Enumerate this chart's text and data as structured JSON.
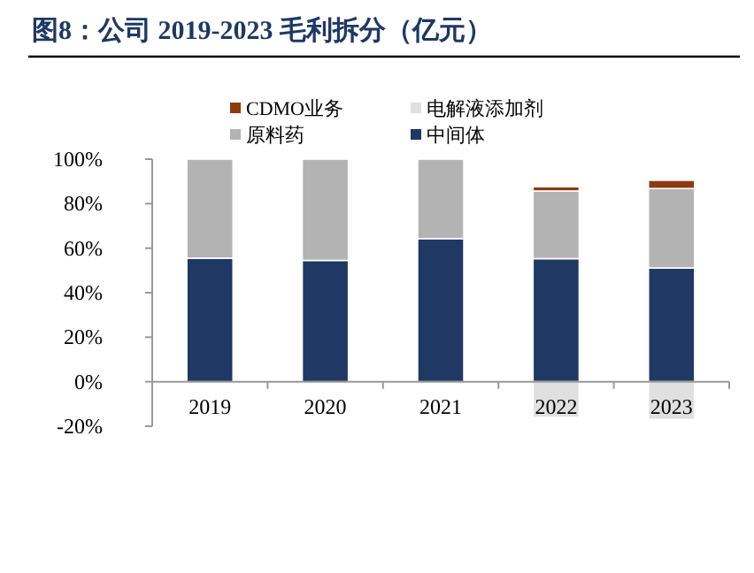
{
  "chart_data": {
    "type": "bar",
    "stacked": true,
    "title": "图8：公司 2019-2023 毛利拆分（亿元）",
    "categories": [
      "2019",
      "2020",
      "2021",
      "2022",
      "2023"
    ],
    "series": [
      {
        "name": "中间体",
        "color": "#1f3864",
        "values": [
          55.5,
          54.5,
          64.3,
          55.3,
          51.1
        ]
      },
      {
        "name": "原料药",
        "color": "#b3b3b3",
        "values": [
          44.5,
          45.5,
          35.7,
          30.4,
          35.7
        ]
      },
      {
        "name": "电解液添加剂",
        "color": "#e0e0e0",
        "values": [
          null,
          null,
          null,
          -16,
          -17
        ]
      },
      {
        "name": "CDMO业务",
        "color": "#8b3a0f",
        "values": [
          null,
          null,
          null,
          1.9,
          3.7
        ]
      }
    ],
    "ylim": [
      -20,
      100
    ],
    "yticks": [
      {
        "value": -20,
        "label": "-20%"
      },
      {
        "value": 0,
        "label": "0%"
      },
      {
        "value": 20,
        "label": "20%"
      },
      {
        "value": 40,
        "label": "40%"
      },
      {
        "value": 60,
        "label": "60%"
      },
      {
        "value": 80,
        "label": "80%"
      },
      {
        "value": 100,
        "label": "100%"
      }
    ],
    "legend": "top"
  }
}
